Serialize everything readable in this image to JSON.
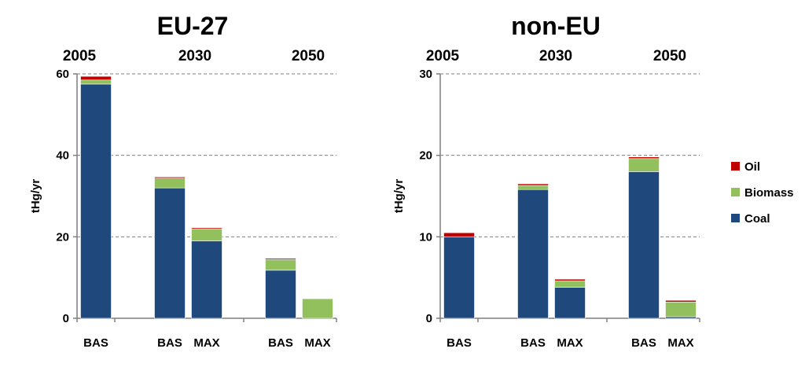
{
  "chart_data": [
    {
      "type": "bar",
      "stacked": true,
      "title": "EU-27",
      "ylabel": "tHg/yr",
      "ylim": [
        0,
        60
      ],
      "yticks": [
        0,
        20,
        40,
        60
      ],
      "grid": true,
      "groups": [
        {
          "year": "2005",
          "categories": [
            "BAS"
          ]
        },
        {
          "year": "2030",
          "categories": [
            "BAS",
            "MAX"
          ]
        },
        {
          "year": "2050",
          "categories": [
            "BAS",
            "MAX"
          ]
        }
      ],
      "categories": [
        "BAS",
        "BAS",
        "MAX",
        "BAS",
        "MAX"
      ],
      "series": [
        {
          "name": "Coal",
          "color": "#1F497D",
          "values": [
            57.5,
            32,
            19,
            11.8,
            0
          ]
        },
        {
          "name": "Biomass",
          "color": "#92C05C",
          "values": [
            1,
            2.4,
            2.9,
            2.6,
            4.8
          ]
        },
        {
          "name": "Oil",
          "color": "#C00000",
          "values": [
            0.9,
            0.3,
            0.3,
            0.3,
            0
          ]
        }
      ]
    },
    {
      "type": "bar",
      "stacked": true,
      "title": "non-EU",
      "ylabel": "tHg/yr",
      "ylim": [
        0,
        30
      ],
      "yticks": [
        0,
        10,
        20,
        30
      ],
      "grid": true,
      "groups": [
        {
          "year": "2005",
          "categories": [
            "BAS"
          ]
        },
        {
          "year": "2030",
          "categories": [
            "BAS",
            "MAX"
          ]
        },
        {
          "year": "2050",
          "categories": [
            "BAS",
            "MAX"
          ]
        }
      ],
      "categories": [
        "BAS",
        "BAS",
        "MAX",
        "BAS",
        "MAX"
      ],
      "series": [
        {
          "name": "Coal",
          "color": "#1F497D",
          "values": [
            10,
            15.8,
            3.8,
            18,
            0.2
          ]
        },
        {
          "name": "Biomass",
          "color": "#92C05C",
          "values": [
            0,
            0.5,
            0.8,
            1.6,
            1.8
          ]
        },
        {
          "name": "Oil",
          "color": "#C00000",
          "values": [
            0.5,
            0.2,
            0.2,
            0.2,
            0.2
          ]
        }
      ]
    }
  ],
  "legend": {
    "position": "right",
    "items": [
      {
        "label": "Oil",
        "color": "#C00000"
      },
      {
        "label": "Biomass",
        "color": "#92C05C"
      },
      {
        "label": "Coal",
        "color": "#1F497D"
      }
    ]
  }
}
